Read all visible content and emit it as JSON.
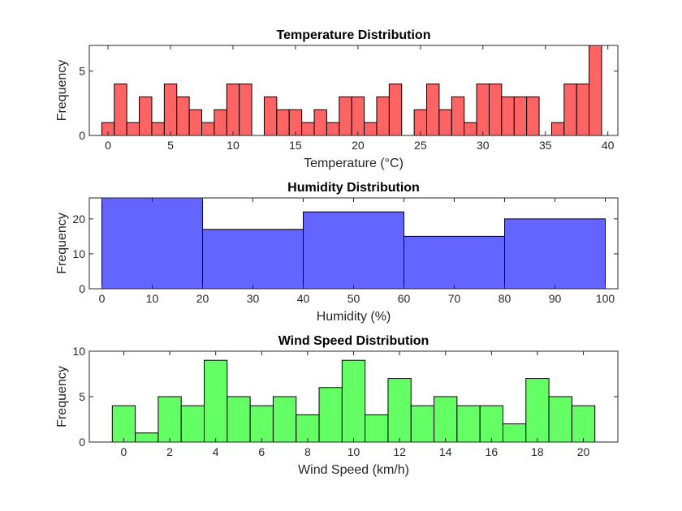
{
  "chart_data": [
    {
      "type": "bar",
      "title": "Temperature Distribution",
      "xlabel": "Temperature (°C)",
      "ylabel": "Frequency",
      "color": "#ff6464",
      "bin_width": 1,
      "bin_starts": [
        -0.5,
        0.5,
        1.5,
        2.5,
        3.5,
        4.5,
        5.5,
        6.5,
        7.5,
        8.5,
        9.5,
        10.5,
        11.5,
        12.5,
        13.5,
        14.5,
        15.5,
        16.5,
        17.5,
        18.5,
        19.5,
        20.5,
        21.5,
        22.5,
        23.5,
        24.5,
        25.5,
        26.5,
        27.5,
        28.5,
        29.5,
        30.5,
        31.5,
        32.5,
        33.5,
        34.5,
        35.5,
        36.5,
        37.5,
        38.5
      ],
      "values": [
        1,
        4,
        1,
        3,
        1,
        4,
        3,
        2,
        1,
        2,
        4,
        4,
        0,
        3,
        2,
        2,
        1,
        2,
        1,
        3,
        3,
        1,
        3,
        4,
        0,
        2,
        4,
        2,
        3,
        1,
        4,
        4,
        3,
        3,
        3,
        0,
        1,
        4,
        4,
        7
      ],
      "xlim": [
        -1.5,
        40.8
      ],
      "ylim": [
        0,
        7
      ],
      "xticks": [
        0,
        5,
        10,
        15,
        20,
        25,
        30,
        35,
        40
      ],
      "yticks": [
        0,
        5
      ]
    },
    {
      "type": "bar",
      "title": "Humidity Distribution",
      "xlabel": "Humidity (%)",
      "ylabel": "Frequency",
      "color": "#6464ff",
      "bin_width": 20,
      "bin_starts": [
        0,
        20,
        40,
        60,
        80
      ],
      "values": [
        26,
        17,
        22,
        15,
        20
      ],
      "xlim": [
        -2.5,
        102.5
      ],
      "ylim": [
        0,
        26
      ],
      "xticks": [
        0,
        10,
        20,
        30,
        40,
        50,
        60,
        70,
        80,
        90,
        100
      ],
      "yticks": [
        0,
        10,
        20
      ]
    },
    {
      "type": "bar",
      "title": "Wind Speed Distribution",
      "xlabel": "Wind Speed (km/h)",
      "ylabel": "Frequency",
      "color": "#64ff64",
      "bin_width": 1,
      "bin_starts": [
        -0.5,
        0.5,
        1.5,
        2.5,
        3.5,
        4.5,
        5.5,
        6.5,
        7.5,
        8.5,
        9.5,
        10.5,
        11.5,
        12.5,
        13.5,
        14.5,
        15.5,
        16.5,
        17.5,
        18.5,
        19.5
      ],
      "values": [
        4,
        1,
        5,
        4,
        9,
        5,
        4,
        5,
        3,
        6,
        9,
        3,
        7,
        4,
        5,
        4,
        4,
        2,
        7,
        5,
        4
      ],
      "xlim": [
        -1.5,
        21.5
      ],
      "ylim": [
        0,
        10
      ],
      "xticks": [
        0,
        2,
        4,
        6,
        8,
        10,
        12,
        14,
        16,
        18,
        20
      ],
      "yticks": [
        0,
        5,
        10
      ]
    }
  ]
}
